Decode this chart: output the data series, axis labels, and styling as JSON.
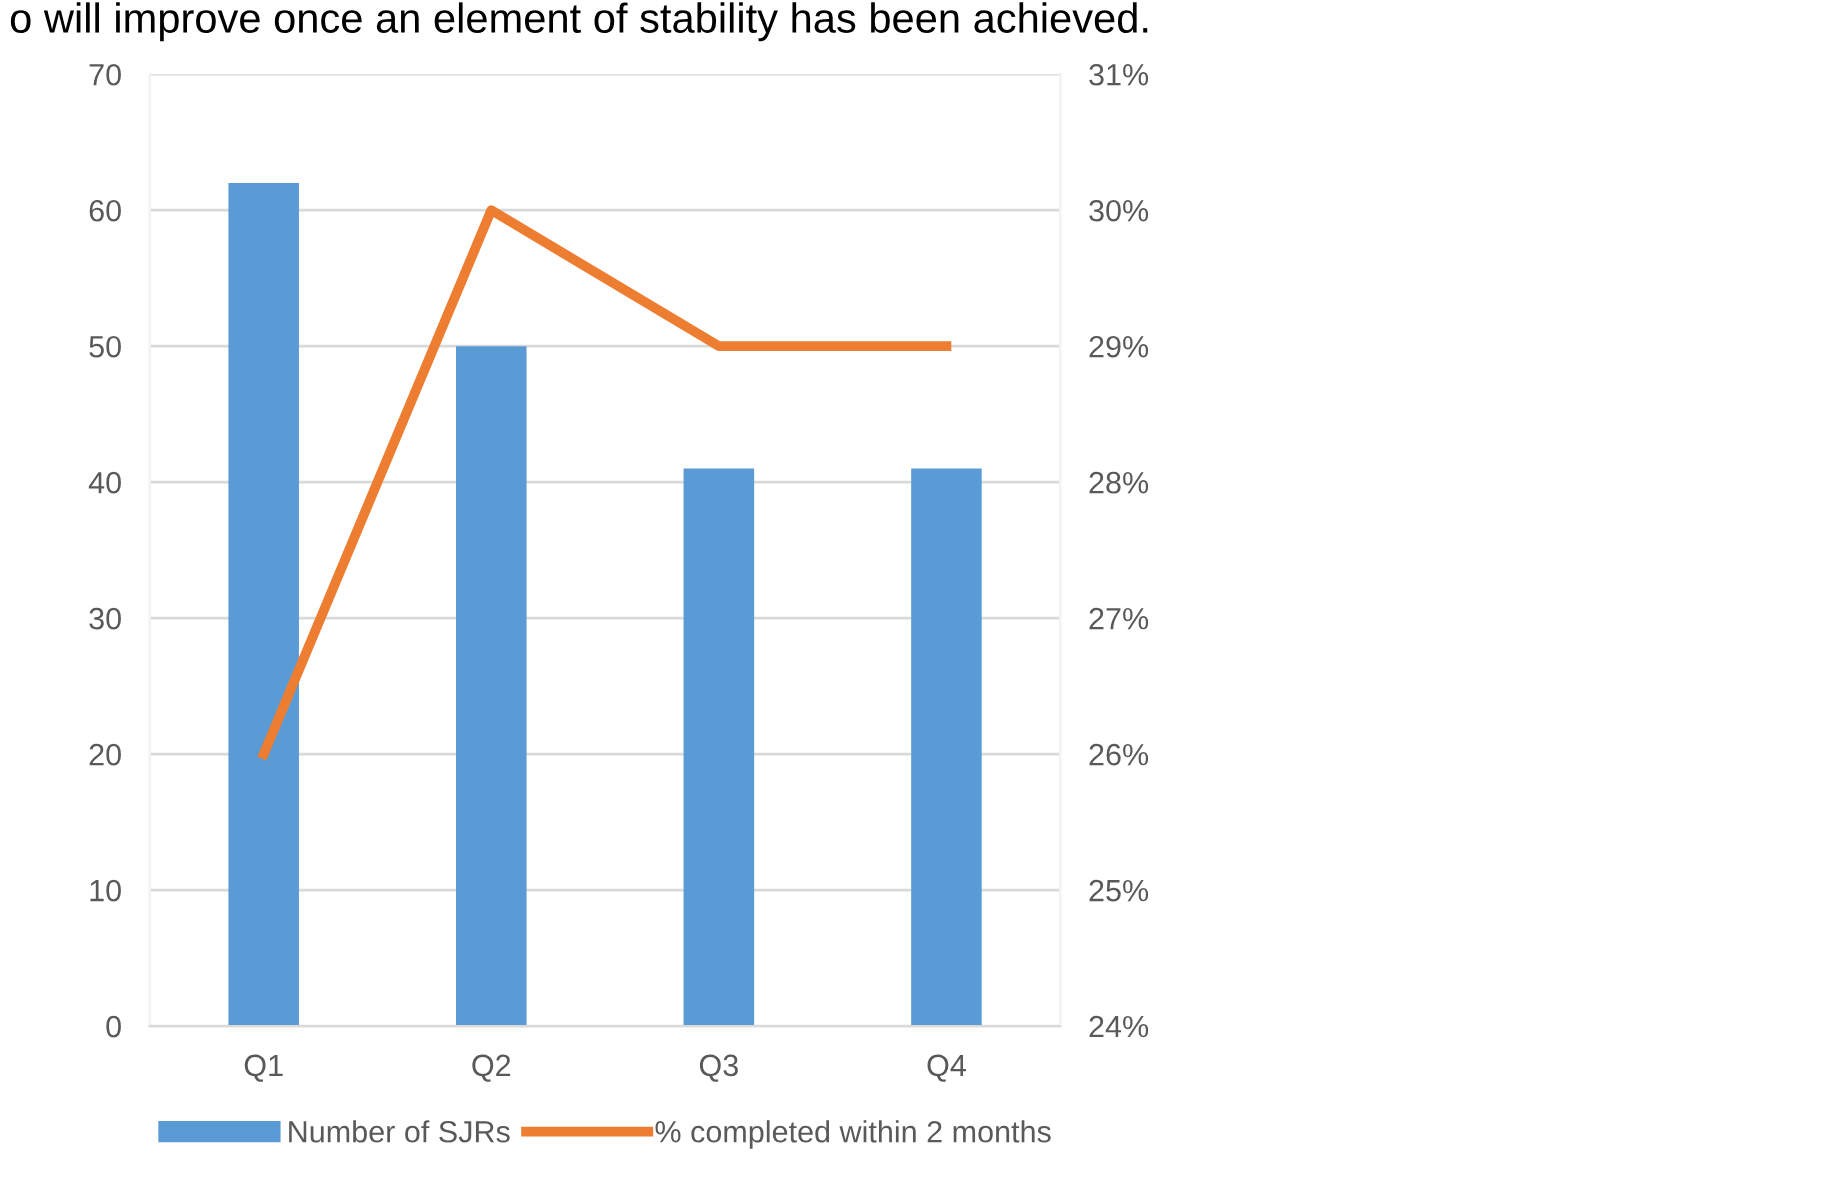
{
  "chart_data": {
    "type": "bar",
    "annotations": [
      "o will improve once an element of stability has been achieved."
    ],
    "categories": [
      "Q1",
      "Q2",
      "Q3",
      "Q4"
    ],
    "series": [
      {
        "name": "Number of SJRs",
        "color": "#5b9bd5",
        "values": [
          62,
          50,
          41,
          41
        ]
      },
      {
        "name": "% completed within 2 months",
        "type": "line",
        "axis": "y2",
        "color": "#ed7d31",
        "values": [
          26,
          30,
          29,
          29
        ]
      }
    ],
    "ylim": [
      0,
      70
    ],
    "yticks": [
      0,
      10,
      20,
      30,
      40,
      50,
      60,
      70
    ],
    "y2lim": [
      24,
      31
    ],
    "y2ticks": [
      {
        "value": 24,
        "label": "24%"
      },
      {
        "value": 25,
        "label": "25%"
      },
      {
        "value": 26,
        "label": "26%"
      },
      {
        "value": 27,
        "label": "27%"
      },
      {
        "value": 28,
        "label": "28%"
      },
      {
        "value": 29,
        "label": "29%"
      },
      {
        "value": 30,
        "label": "30%"
      },
      {
        "value": 31,
        "label": "31%"
      }
    ],
    "grid": "y",
    "legend": "bottom"
  }
}
